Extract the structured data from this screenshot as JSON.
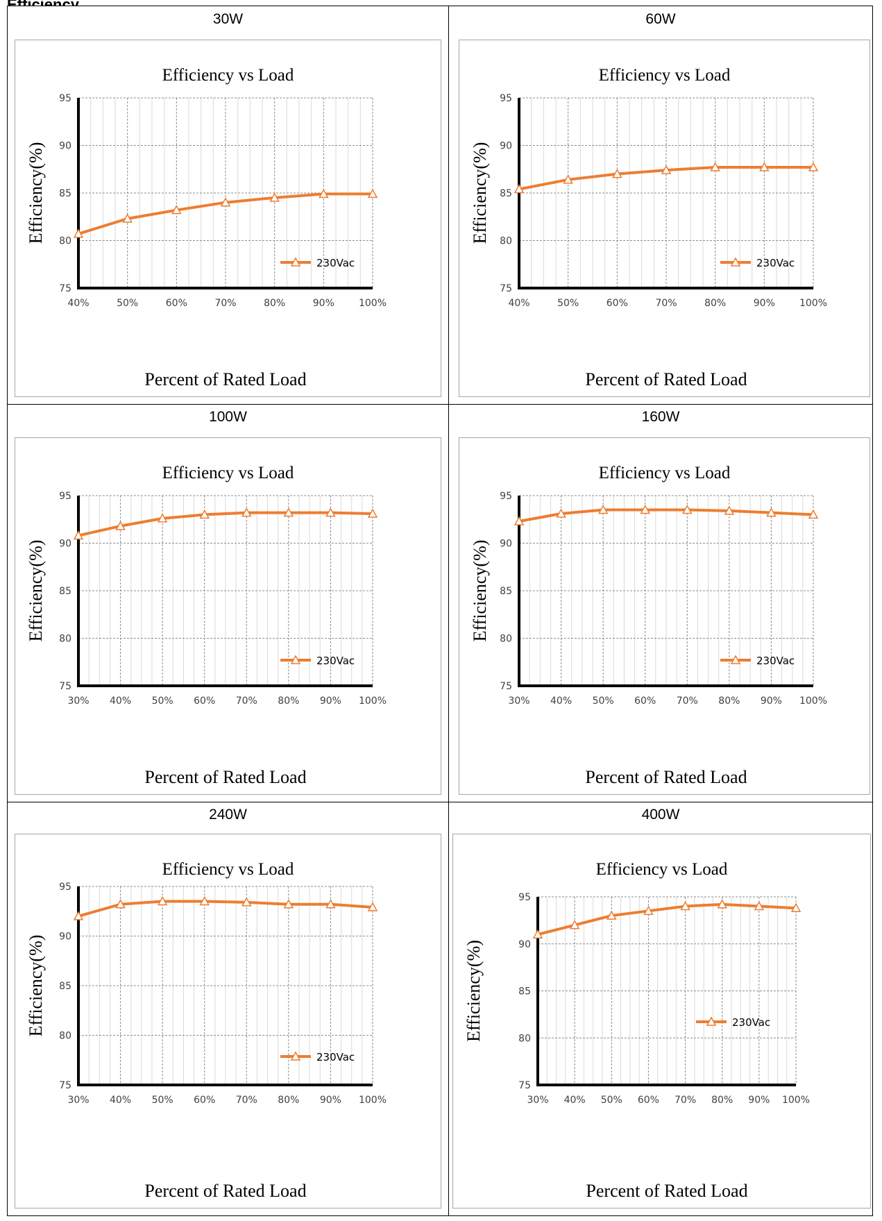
{
  "page": {
    "header": "Efficiency"
  },
  "colors": {
    "series": "#ED7D31",
    "axis": "#000000",
    "grid": "#8c8c8c",
    "minor_grid": "#d9d9d9",
    "frame": "#a6a6a6"
  },
  "chart_data": [
    {
      "panel_label": "30W",
      "type": "line",
      "title": "Efficiency vs Load",
      "xlabel": "Percent of Rated Load",
      "ylabel": "Efficiency(%)",
      "categories": [
        "40%",
        "50%",
        "60%",
        "70%",
        "80%",
        "90%",
        "100%"
      ],
      "yticks": [
        "75",
        "80",
        "85",
        "90",
        "95"
      ],
      "ylim": [
        75,
        95
      ],
      "grid": true,
      "legend_position": "bottom-right",
      "series": [
        {
          "name": "230Vac",
          "marker": "triangle",
          "values": [
            80.7,
            82.3,
            83.2,
            84.0,
            84.5,
            84.9,
            84.9
          ]
        }
      ]
    },
    {
      "panel_label": "60W",
      "type": "line",
      "title": "Efficiency vs Load",
      "xlabel": "Percent of Rated Load",
      "ylabel": "Efficiency(%)",
      "categories": [
        "40%",
        "50%",
        "60%",
        "70%",
        "80%",
        "90%",
        "100%"
      ],
      "yticks": [
        "75",
        "80",
        "85",
        "90",
        "95"
      ],
      "ylim": [
        75,
        95
      ],
      "grid": true,
      "legend_position": "bottom-right",
      "series": [
        {
          "name": "230Vac",
          "marker": "triangle",
          "values": [
            85.4,
            86.4,
            87.0,
            87.4,
            87.7,
            87.7,
            87.7
          ]
        }
      ]
    },
    {
      "panel_label": "100W",
      "type": "line",
      "title": "Efficiency vs Load",
      "xlabel": "Percent of Rated Load",
      "ylabel": "Efficiency(%)",
      "categories": [
        "30%",
        "40%",
        "50%",
        "60%",
        "70%",
        "80%",
        "90%",
        "100%"
      ],
      "yticks": [
        "75",
        "80",
        "85",
        "90",
        "95"
      ],
      "ylim": [
        75,
        95
      ],
      "grid": true,
      "legend_position": "bottom-right",
      "series": [
        {
          "name": "230Vac",
          "marker": "triangle",
          "values": [
            90.8,
            91.8,
            92.6,
            93.0,
            93.2,
            93.2,
            93.2,
            93.1
          ]
        }
      ]
    },
    {
      "panel_label": "160W",
      "type": "line",
      "title": "Efficiency vs Load",
      "xlabel": "Percent of Rated Load",
      "ylabel": "Efficiency(%)",
      "categories": [
        "30%",
        "40%",
        "50%",
        "60%",
        "70%",
        "80%",
        "90%",
        "100%"
      ],
      "yticks": [
        "75",
        "80",
        "85",
        "90",
        "95"
      ],
      "ylim": [
        75,
        95
      ],
      "grid": true,
      "legend_position": "bottom-right",
      "series": [
        {
          "name": "230Vac",
          "marker": "triangle",
          "values": [
            92.3,
            93.1,
            93.5,
            93.5,
            93.5,
            93.4,
            93.2,
            93.0
          ]
        }
      ]
    },
    {
      "panel_label": "240W",
      "type": "line",
      "title": "Efficiency vs Load",
      "xlabel": "Percent of Rated Load",
      "ylabel": "Efficiency(%)",
      "categories": [
        "30%",
        "40%",
        "50%",
        "60%",
        "70%",
        "80%",
        "90%",
        "100%"
      ],
      "yticks": [
        "75",
        "80",
        "85",
        "90",
        "95"
      ],
      "ylim": [
        75,
        95
      ],
      "grid": true,
      "legend_position": "bottom-right",
      "series": [
        {
          "name": "230Vac",
          "marker": "triangle",
          "values": [
            92.0,
            93.2,
            93.5,
            93.5,
            93.4,
            93.2,
            93.2,
            92.9
          ]
        }
      ]
    },
    {
      "panel_label": "400W",
      "type": "line",
      "title": "Efficiency vs Load",
      "xlabel": "Percent of Rated Load",
      "ylabel": "Efficiency(%)",
      "categories": [
        "30%",
        "40%",
        "50%",
        "60%",
        "70%",
        "80%",
        "90%",
        "100%"
      ],
      "yticks": [
        "75",
        "80",
        "85",
        "90",
        "95"
      ],
      "ylim": [
        75,
        95
      ],
      "grid": true,
      "legend_position": "center-right",
      "series": [
        {
          "name": "230Vac",
          "marker": "triangle",
          "values": [
            91.0,
            92.0,
            93.0,
            93.5,
            94.0,
            94.2,
            94.0,
            93.8
          ]
        }
      ]
    }
  ]
}
